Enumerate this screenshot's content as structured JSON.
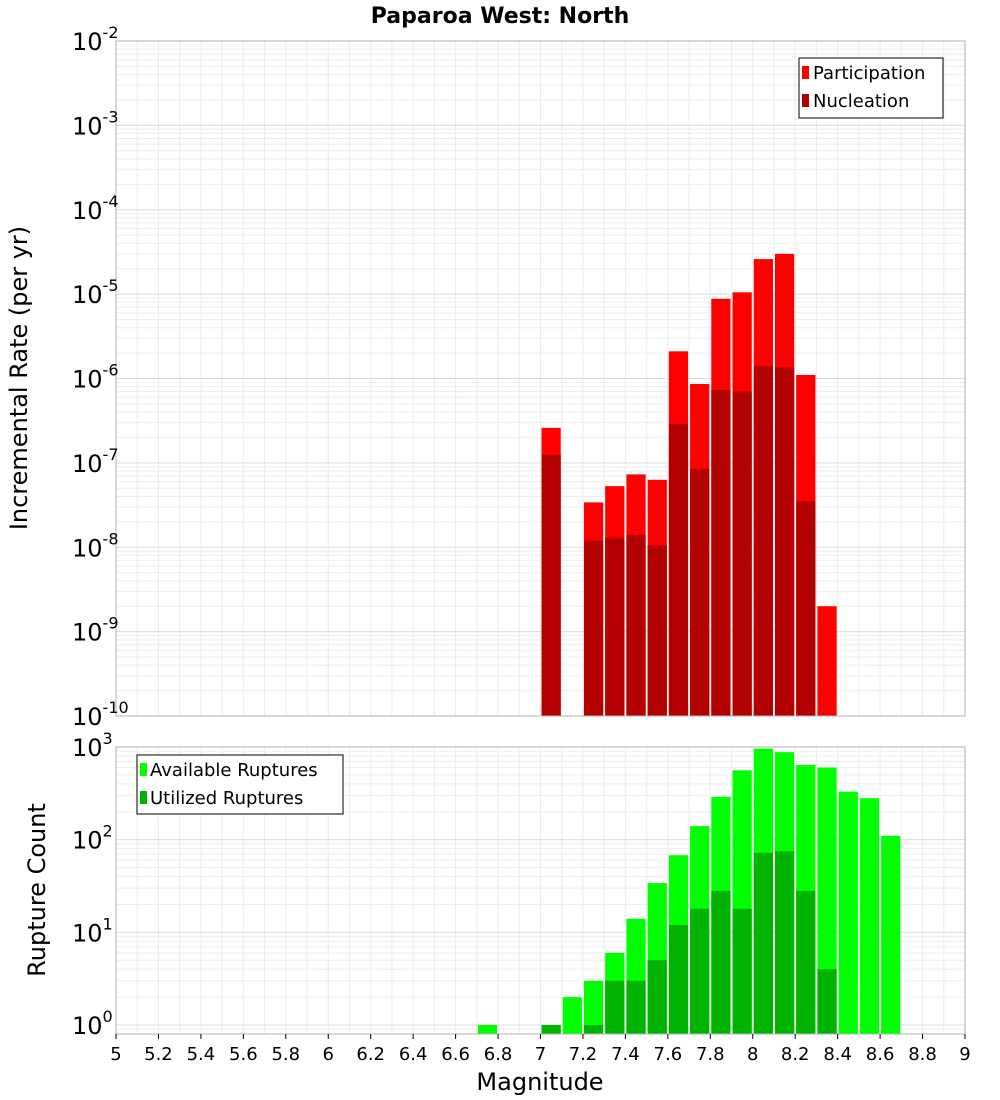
{
  "chart_data": [
    {
      "type": "bar",
      "title": "Paparoa West: North",
      "xlabel": "Magnitude",
      "ylabel": "Incremental Rate (per yr)",
      "yscale": "log",
      "ylim": [
        1e-10,
        0.01
      ],
      "xlim": [
        5,
        9
      ],
      "bin_width": 0.1,
      "grid": true,
      "legend_position": "top-right",
      "x": [
        7.05,
        7.25,
        7.35,
        7.45,
        7.55,
        7.65,
        7.75,
        7.85,
        7.95,
        8.05,
        8.15,
        8.25,
        8.35
      ],
      "series": [
        {
          "name": "Participation",
          "color": "#ff0000",
          "values": [
            2.6e-07,
            3.4e-08,
            5.3e-08,
            7.3e-08,
            6.3e-08,
            2.1e-06,
            8.6e-07,
            8.8e-06,
            1.05e-05,
            2.6e-05,
            3e-05,
            1.1e-06,
            2e-09
          ]
        },
        {
          "name": "Nucleation",
          "color": "#b30000",
          "values": [
            1.25e-07,
            1.2e-08,
            1.3e-08,
            1.4e-08,
            1.05e-08,
            2.9e-07,
            8.5e-08,
            7.3e-07,
            7e-07,
            1.4e-06,
            1.35e-06,
            3.5e-08,
            null
          ]
        }
      ],
      "ytick_exponents": [
        -10,
        -9,
        -8,
        -7,
        -6,
        -5,
        -4,
        -3,
        -2
      ]
    },
    {
      "type": "bar",
      "xlabel": "Magnitude",
      "ylabel": "Rupture Count",
      "yscale": "log",
      "ylim": [
        0.8,
        1000
      ],
      "xlim": [
        5,
        9
      ],
      "bin_width": 0.1,
      "grid": true,
      "legend_position": "top-left",
      "x": [
        6.75,
        7.05,
        7.15,
        7.25,
        7.35,
        7.45,
        7.55,
        7.65,
        7.75,
        7.85,
        7.95,
        8.05,
        8.15,
        8.25,
        8.35,
        8.45,
        8.55,
        8.65
      ],
      "series": [
        {
          "name": "Available Ruptures",
          "color": "#00ff00",
          "values": [
            1,
            1,
            2,
            3,
            6,
            14,
            34,
            68,
            140,
            290,
            560,
            960,
            880,
            640,
            600,
            330,
            280,
            110
          ]
        },
        {
          "name": "Utilized Ruptures",
          "color": "#00b300",
          "values": [
            null,
            1,
            null,
            1,
            3,
            3,
            5,
            12,
            18,
            28,
            18,
            72,
            75,
            28,
            4,
            null,
            null,
            null
          ]
        }
      ],
      "ytick_exponents": [
        0,
        1,
        2,
        3
      ],
      "xticks": [
        "5",
        "5.2",
        "5.4",
        "5.6",
        "5.8",
        "6",
        "6.2",
        "6.4",
        "6.6",
        "6.8",
        "7",
        "7.2",
        "7.4",
        "7.6",
        "7.8",
        "8",
        "8.2",
        "8.4",
        "8.6",
        "8.8",
        "9"
      ]
    }
  ]
}
